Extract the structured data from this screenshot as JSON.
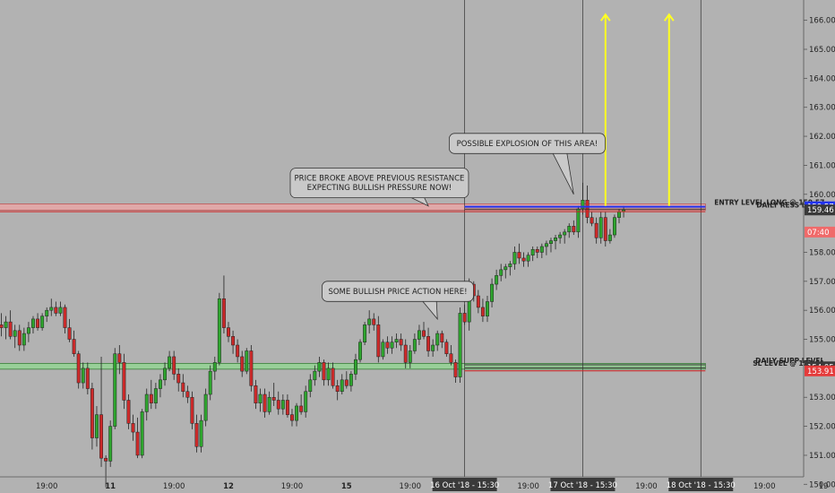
{
  "colors": {
    "background": "#b2b2b2",
    "bull": "#2ea52e",
    "bear": "#cc2a2a",
    "resistance_zone": "#e0a8a8",
    "support_zone": "#98cf98",
    "entry_line": "#2233ee",
    "arrow": "#ffff22",
    "tag_dark": "#3a3a3a",
    "tag_red": "#e53b3b",
    "tag_pink": "#f06a6a",
    "tag_blue": "#2233ee"
  },
  "chart_data": {
    "type": "candlestick",
    "ylim": [
      149.7,
      166.7
    ],
    "y_ticks": [
      {
        "value": 150,
        "label": "150.00"
      },
      {
        "value": 151,
        "label": "151.00"
      },
      {
        "value": 152,
        "label": "152.00"
      },
      {
        "value": 153,
        "label": "153.00"
      },
      {
        "value": 155,
        "label": "155.00"
      },
      {
        "value": 156,
        "label": "156.00"
      },
      {
        "value": 157,
        "label": "157.00"
      },
      {
        "value": 158,
        "label": "158.00"
      },
      {
        "value": 160,
        "label": "160.00"
      },
      {
        "value": 161,
        "label": "161.00"
      },
      {
        "value": 162,
        "label": "162.00"
      },
      {
        "value": 163,
        "label": "163.00"
      },
      {
        "value": 164,
        "label": "164.00"
      },
      {
        "value": 165,
        "label": "165.00"
      },
      {
        "value": 166,
        "label": "166.00"
      }
    ],
    "x_ticks": [
      {
        "bar": 10,
        "label": "19:00"
      },
      {
        "bar": 24,
        "label": "11",
        "bold": true
      },
      {
        "bar": 38,
        "label": "19:00"
      },
      {
        "bar": 50,
        "label": "12",
        "bold": true
      },
      {
        "bar": 64,
        "label": "19:00"
      },
      {
        "bar": 76,
        "label": "15",
        "bold": true
      },
      {
        "bar": 90,
        "label": "19:00"
      },
      {
        "bar": 116,
        "label": "19:00"
      },
      {
        "bar": 142,
        "label": "19:00"
      },
      {
        "bar": 168,
        "label": "19:00"
      },
      {
        "bar": 181,
        "label": "19"
      }
    ],
    "x_highlight_ticks": [
      {
        "bar": 102,
        "label": "16 Oct '18 - 15:30"
      },
      {
        "bar": 128,
        "label": "17 Oct '18 - 15:30"
      },
      {
        "bar": 154,
        "label": "18 Oct '18 - 15:30"
      }
    ],
    "vertical_lines": [
      102,
      128,
      154
    ],
    "price_tags": [
      {
        "value": 159.57,
        "label": "159.57",
        "style": "blue"
      },
      {
        "value": 159.46,
        "label": "159.46",
        "style": "dark"
      },
      {
        "value": 159.1,
        "label": "07:40",
        "style": "pink"
      },
      {
        "value": 154.05,
        "label": "154.05",
        "style": "dark"
      },
      {
        "value": 153.91,
        "label": "153.91",
        "style": "red"
      }
    ],
    "zones": [
      {
        "name": "resistance",
        "from": 159.45,
        "to": 159.67,
        "x_from": 0,
        "x_to": 155
      },
      {
        "name": "support",
        "from": 153.97,
        "to": 154.17,
        "x_from": 0,
        "x_to": 155
      }
    ],
    "levels": [
      {
        "value": 159.57,
        "label": "ENTRY LEVEL LONG @ 159.57",
        "x_from": 102,
        "x_to": 155,
        "style": "entry"
      },
      {
        "value": 159.49,
        "label": "DAILY RESS LEVEL",
        "x_from": 102,
        "x_to": 155,
        "style": "dark"
      },
      {
        "value": 159.4,
        "label": "",
        "x_from": 0,
        "x_to": 102,
        "style": "red"
      },
      {
        "value": 159.4,
        "label": "",
        "x_from": 102,
        "x_to": 155,
        "style": "red"
      },
      {
        "value": 154.12,
        "label": "DAILY SUPP LEVEL",
        "x_from": 102,
        "x_to": 155,
        "style": "dark"
      },
      {
        "value": 154.02,
        "label": "SL LEVEL @ 153.91",
        "x_from": 102,
        "x_to": 155,
        "style": "dark"
      },
      {
        "value": 153.91,
        "label": "",
        "x_from": 102,
        "x_to": 155,
        "style": "red"
      }
    ],
    "arrows": [
      {
        "bar": 133,
        "from": 159.6,
        "to": 166.2
      },
      {
        "bar": 147,
        "from": 159.6,
        "to": 166.2
      }
    ],
    "annotations": [
      {
        "lines": [
          "PRICE BROKE ABOVE PREVIOUS RESISTANCE",
          "EXPECTING BULLISH PRESSURE NOW!"
        ],
        "bar": 64,
        "price": 160.9,
        "tip_bar": 94,
        "tip_price": 159.6
      },
      {
        "lines": [
          "SOME BULLISH PRICE ACTION HERE!"
        ],
        "bar": 71,
        "price": 157.0,
        "tip_bar": 96,
        "tip_price": 155.7
      },
      {
        "lines": [
          "POSSIBLE EXPLOSION OF THIS AREA!"
        ],
        "bar": 99,
        "price": 162.1,
        "tip_bar": 126,
        "tip_price": 160.0
      }
    ],
    "candles": [
      [
        155.5,
        155.9,
        155.1,
        155.4
      ],
      [
        155.4,
        155.8,
        155.0,
        155.6
      ],
      [
        155.6,
        156.0,
        155.0,
        155.1
      ],
      [
        155.1,
        155.5,
        154.7,
        155.3
      ],
      [
        155.3,
        155.5,
        154.6,
        154.8
      ],
      [
        154.8,
        155.4,
        154.6,
        155.2
      ],
      [
        155.2,
        155.6,
        154.9,
        155.4
      ],
      [
        155.4,
        155.8,
        155.2,
        155.7
      ],
      [
        155.7,
        155.9,
        155.3,
        155.4
      ],
      [
        155.4,
        155.9,
        155.3,
        155.8
      ],
      [
        155.8,
        156.1,
        155.6,
        156.0
      ],
      [
        156.0,
        156.4,
        155.8,
        156.1
      ],
      [
        156.1,
        156.3,
        155.8,
        155.9
      ],
      [
        155.9,
        156.3,
        155.8,
        156.1
      ],
      [
        156.1,
        156.2,
        155.2,
        155.4
      ],
      [
        155.4,
        155.7,
        154.9,
        155.0
      ],
      [
        155.0,
        155.3,
        154.4,
        154.5
      ],
      [
        154.5,
        154.6,
        153.3,
        153.5
      ],
      [
        153.5,
        154.2,
        153.3,
        154.0
      ],
      [
        154.0,
        154.2,
        153.1,
        153.3
      ],
      [
        153.3,
        153.5,
        151.2,
        151.6
      ],
      [
        151.6,
        152.7,
        151.3,
        152.4
      ],
      [
        152.4,
        154.4,
        150.6,
        150.9
      ],
      [
        150.9,
        151.0,
        149.9,
        150.8
      ],
      [
        150.8,
        152.2,
        150.6,
        152.0
      ],
      [
        152.0,
        154.7,
        151.9,
        154.5
      ],
      [
        154.5,
        154.8,
        153.8,
        154.2
      ],
      [
        154.2,
        154.5,
        152.6,
        152.9
      ],
      [
        152.9,
        153.1,
        151.9,
        152.1
      ],
      [
        152.1,
        152.4,
        151.5,
        151.8
      ],
      [
        151.8,
        152.3,
        150.9,
        151.0
      ],
      [
        151.0,
        152.6,
        150.9,
        152.5
      ],
      [
        152.5,
        153.3,
        152.2,
        153.1
      ],
      [
        153.1,
        153.6,
        152.6,
        152.8
      ],
      [
        152.8,
        153.5,
        152.6,
        153.3
      ],
      [
        153.3,
        153.8,
        153.0,
        153.6
      ],
      [
        153.6,
        154.2,
        153.4,
        154.0
      ],
      [
        154.0,
        154.6,
        153.9,
        154.4
      ],
      [
        154.4,
        154.6,
        153.6,
        153.8
      ],
      [
        153.8,
        154.0,
        153.2,
        153.5
      ],
      [
        153.5,
        153.8,
        153.0,
        153.2
      ],
      [
        153.2,
        153.4,
        152.8,
        153.0
      ],
      [
        153.0,
        153.2,
        151.9,
        152.1
      ],
      [
        152.1,
        152.4,
        151.1,
        151.3
      ],
      [
        151.3,
        152.4,
        151.1,
        152.2
      ],
      [
        152.2,
        153.3,
        152.0,
        153.1
      ],
      [
        153.1,
        154.1,
        152.9,
        153.9
      ],
      [
        153.9,
        154.4,
        153.6,
        154.2
      ],
      [
        154.2,
        156.6,
        154.1,
        156.4
      ],
      [
        156.4,
        157.2,
        155.2,
        155.4
      ],
      [
        155.4,
        155.6,
        154.9,
        155.1
      ],
      [
        155.1,
        155.3,
        154.5,
        154.8
      ],
      [
        154.8,
        155.0,
        154.2,
        154.4
      ],
      [
        154.4,
        154.6,
        153.7,
        153.9
      ],
      [
        153.9,
        154.7,
        153.8,
        154.6
      ],
      [
        154.6,
        154.8,
        153.2,
        153.4
      ],
      [
        153.4,
        153.6,
        152.6,
        152.8
      ],
      [
        152.8,
        153.3,
        152.5,
        153.1
      ],
      [
        153.1,
        153.3,
        152.3,
        152.5
      ],
      [
        152.5,
        153.2,
        152.4,
        153.0
      ],
      [
        153.0,
        153.5,
        152.7,
        152.9
      ],
      [
        152.9,
        153.2,
        152.4,
        152.6
      ],
      [
        152.6,
        153.1,
        152.4,
        152.9
      ],
      [
        152.9,
        153.1,
        152.3,
        152.4
      ],
      [
        152.4,
        152.6,
        152.0,
        152.2
      ],
      [
        152.2,
        152.8,
        152.0,
        152.7
      ],
      [
        152.7,
        153.1,
        152.4,
        152.5
      ],
      [
        152.5,
        153.4,
        152.3,
        153.2
      ],
      [
        153.2,
        153.8,
        153.0,
        153.6
      ],
      [
        153.6,
        154.1,
        153.4,
        153.9
      ],
      [
        153.9,
        154.4,
        153.7,
        154.2
      ],
      [
        154.2,
        154.3,
        153.4,
        153.6
      ],
      [
        153.6,
        154.2,
        153.4,
        154.0
      ],
      [
        154.0,
        154.2,
        153.3,
        153.4
      ],
      [
        153.4,
        153.6,
        152.9,
        153.2
      ],
      [
        153.2,
        153.8,
        153.1,
        153.6
      ],
      [
        153.6,
        153.9,
        153.3,
        153.4
      ],
      [
        153.4,
        153.9,
        153.2,
        153.8
      ],
      [
        153.8,
        154.5,
        153.6,
        154.3
      ],
      [
        154.3,
        155.0,
        154.2,
        154.9
      ],
      [
        154.9,
        155.6,
        154.8,
        155.5
      ],
      [
        155.5,
        156.0,
        155.2,
        155.7
      ],
      [
        155.7,
        155.9,
        155.3,
        155.5
      ],
      [
        155.5,
        155.8,
        154.2,
        154.4
      ],
      [
        154.4,
        155.0,
        154.3,
        154.9
      ],
      [
        154.9,
        155.1,
        154.5,
        154.7
      ],
      [
        154.7,
        155.1,
        154.5,
        154.9
      ],
      [
        154.9,
        155.2,
        154.7,
        155.0
      ],
      [
        155.0,
        155.2,
        154.6,
        154.8
      ],
      [
        154.8,
        155.0,
        154.0,
        154.2
      ],
      [
        154.2,
        154.8,
        154.0,
        154.6
      ],
      [
        154.6,
        155.2,
        154.5,
        155.0
      ],
      [
        155.0,
        155.5,
        154.8,
        155.3
      ],
      [
        155.3,
        155.6,
        155.0,
        155.1
      ],
      [
        155.1,
        155.4,
        154.4,
        154.6
      ],
      [
        154.6,
        155.0,
        154.4,
        154.8
      ],
      [
        154.8,
        155.3,
        154.6,
        155.2
      ],
      [
        155.2,
        155.3,
        154.7,
        154.9
      ],
      [
        154.9,
        155.0,
        154.4,
        154.5
      ],
      [
        154.5,
        154.8,
        154.1,
        154.2
      ],
      [
        154.2,
        154.3,
        153.5,
        153.7
      ],
      [
        153.7,
        156.1,
        153.5,
        155.9
      ],
      [
        155.9,
        156.2,
        155.5,
        155.6
      ],
      [
        155.6,
        157.1,
        155.3,
        156.9
      ],
      [
        156.9,
        157.0,
        156.3,
        156.5
      ],
      [
        156.5,
        156.7,
        155.9,
        156.1
      ],
      [
        156.1,
        156.4,
        155.6,
        155.8
      ],
      [
        155.8,
        156.5,
        155.6,
        156.3
      ],
      [
        156.3,
        157.1,
        156.1,
        156.9
      ],
      [
        156.9,
        157.4,
        156.7,
        157.2
      ],
      [
        157.2,
        157.6,
        157.0,
        157.4
      ],
      [
        157.4,
        157.6,
        157.1,
        157.5
      ],
      [
        157.5,
        157.7,
        157.2,
        157.6
      ],
      [
        157.6,
        158.2,
        157.4,
        158.0
      ],
      [
        158.0,
        158.3,
        157.6,
        157.8
      ],
      [
        157.8,
        158.0,
        157.5,
        157.7
      ],
      [
        157.7,
        158.0,
        157.5,
        157.9
      ],
      [
        157.9,
        158.2,
        157.7,
        158.1
      ],
      [
        158.1,
        158.2,
        157.8,
        158.0
      ],
      [
        158.0,
        158.3,
        157.8,
        158.2
      ],
      [
        158.2,
        158.4,
        157.9,
        158.3
      ],
      [
        158.3,
        158.5,
        158.0,
        158.4
      ],
      [
        158.4,
        158.6,
        158.1,
        158.5
      ],
      [
        158.5,
        158.7,
        158.3,
        158.6
      ],
      [
        158.6,
        158.8,
        158.3,
        158.7
      ],
      [
        158.7,
        159.0,
        158.5,
        158.9
      ],
      [
        158.9,
        159.1,
        158.6,
        158.7
      ],
      [
        158.7,
        159.6,
        158.5,
        159.5
      ],
      [
        159.5,
        160.4,
        159.3,
        159.8
      ],
      [
        159.8,
        160.3,
        159.0,
        159.2
      ],
      [
        159.2,
        159.4,
        158.9,
        159.0
      ],
      [
        159.0,
        159.2,
        158.3,
        158.5
      ],
      [
        158.5,
        159.4,
        158.3,
        159.2
      ],
      [
        159.2,
        159.4,
        158.2,
        158.4
      ],
      [
        158.4,
        158.8,
        158.3,
        158.6
      ],
      [
        158.6,
        159.3,
        158.5,
        159.2
      ],
      [
        159.2,
        159.5,
        159.0,
        159.4
      ],
      [
        159.4,
        159.6,
        159.2,
        159.46
      ]
    ]
  }
}
